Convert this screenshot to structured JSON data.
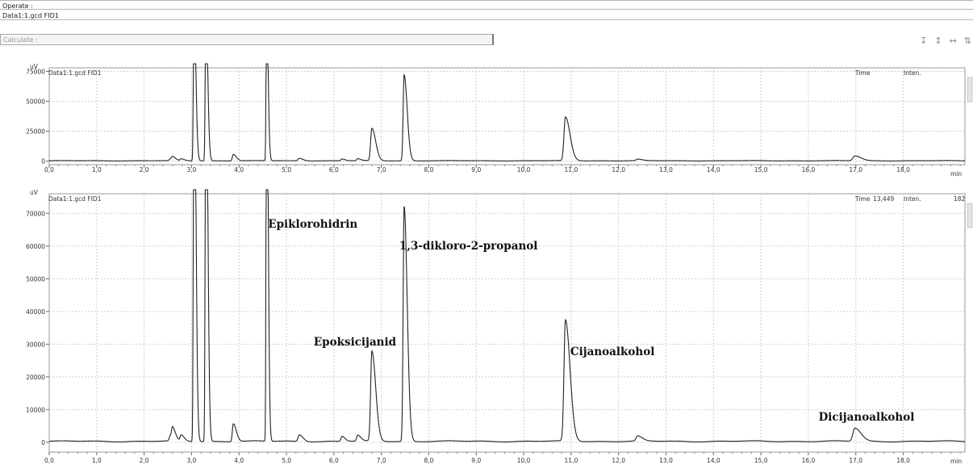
{
  "header": {
    "operate_label": "Operate :",
    "dataset_label": "Data1:1.gcd FID1",
    "calculate_label": "Calculate :"
  },
  "toolbar": [
    {
      "name": "fit-vertical-icon",
      "glyph": "↧"
    },
    {
      "name": "zoom-vertical-icon",
      "glyph": "↕"
    },
    {
      "name": "zoom-horizontal-icon",
      "glyph": "↔"
    },
    {
      "name": "fit-both-icon",
      "glyph": "⇅"
    }
  ],
  "chart_data": [
    {
      "type": "line",
      "title": "Data1:1.gcd FID1",
      "ylabel": "uV",
      "xlabel": "min",
      "xlim": [
        0,
        19.3
      ],
      "ylim": [
        -3000,
        78000
      ],
      "yticks": [
        0,
        25000,
        50000,
        75000
      ],
      "xticks": [
        "0,0",
        "1,0",
        "2,0",
        "3,0",
        "4,0",
        "5,0",
        "6,0",
        "7,0",
        "8,0",
        "9,0",
        "10,0",
        "11,0",
        "12,0",
        "13,0",
        "14,0",
        "15,0",
        "16,0",
        "17,0",
        "18,0"
      ],
      "grid": true,
      "readout": {
        "time_label": "Time",
        "time_value": "",
        "inten_label": "Inten.",
        "inten_value": ""
      },
      "peaks": [
        {
          "t": 2.55,
          "h": 1500,
          "w": 0.02
        },
        {
          "t": 2.6,
          "h": 2500,
          "w": 0.02
        },
        {
          "t": 2.78,
          "h": 1500,
          "w": 0.02
        },
        {
          "t": 3.05,
          "h": 140000,
          "w": 0.012
        },
        {
          "t": 3.3,
          "h": 140000,
          "w": 0.012
        },
        {
          "t": 3.88,
          "h": 5500,
          "w": 0.02
        },
        {
          "t": 4.58,
          "h": 140000,
          "w": 0.01
        },
        {
          "t": 5.27,
          "h": 2000,
          "w": 0.025
        },
        {
          "t": 6.17,
          "h": 1500,
          "w": 0.02
        },
        {
          "t": 6.5,
          "h": 1600,
          "w": 0.02
        },
        {
          "t": 6.8,
          "h": 27000,
          "w": 0.025
        },
        {
          "t": 7.48,
          "h": 72000,
          "w": 0.02
        },
        {
          "t": 10.88,
          "h": 36500,
          "w": 0.03
        },
        {
          "t": 12.4,
          "h": 1200,
          "w": 0.03
        },
        {
          "t": 16.98,
          "h": 4000,
          "w": 0.04
        }
      ],
      "annotations": []
    },
    {
      "type": "line",
      "title": "Data1:1.gcd FID1",
      "ylabel": "uV",
      "xlabel": "min",
      "xlim": [
        0,
        19.3
      ],
      "ylim": [
        -3000,
        76000
      ],
      "yticks": [
        0,
        10000,
        20000,
        30000,
        40000,
        50000,
        60000,
        70000
      ],
      "xticks": [
        "0,0",
        "1,0",
        "2,0",
        "3,0",
        "4,0",
        "5,0",
        "6,0",
        "7,0",
        "8,0",
        "9,0",
        "10,0",
        "11,0",
        "12,0",
        "13,0",
        "14,0",
        "15,0",
        "16,0",
        "17,0",
        "18,0"
      ],
      "grid": true,
      "readout": {
        "time_label": "Time",
        "time_value": "13,449",
        "inten_label": "Inten.",
        "inten_value": "182"
      },
      "peaks": [
        {
          "t": 2.55,
          "h": 1500,
          "w": 0.02
        },
        {
          "t": 2.6,
          "h": 3200,
          "w": 0.02
        },
        {
          "t": 2.78,
          "h": 1800,
          "w": 0.02
        },
        {
          "t": 3.05,
          "h": 140000,
          "w": 0.012
        },
        {
          "t": 3.3,
          "h": 140000,
          "w": 0.012
        },
        {
          "t": 3.88,
          "h": 5500,
          "w": 0.02
        },
        {
          "t": 4.58,
          "h": 140000,
          "w": 0.01
        },
        {
          "t": 5.27,
          "h": 2000,
          "w": 0.025
        },
        {
          "t": 6.17,
          "h": 1500,
          "w": 0.02
        },
        {
          "t": 6.5,
          "h": 1800,
          "w": 0.02
        },
        {
          "t": 6.8,
          "h": 27500,
          "w": 0.025
        },
        {
          "t": 7.48,
          "h": 72000,
          "w": 0.02
        },
        {
          "t": 10.88,
          "h": 37000,
          "w": 0.03
        },
        {
          "t": 12.4,
          "h": 1500,
          "w": 0.03
        },
        {
          "t": 16.98,
          "h": 4000,
          "w": 0.04
        }
      ],
      "annotations": [
        {
          "text": "Epiklorohidrin",
          "t": 4.58
        },
        {
          "text": "Epoksicijanid",
          "t": 6.8
        },
        {
          "text": "1,3-dikloro-2-propanol",
          "t": 7.48
        },
        {
          "text": "Cijanoalkohol",
          "t": 10.88
        },
        {
          "text": "Dicijanoalkohol",
          "t": 16.98
        }
      ]
    }
  ]
}
